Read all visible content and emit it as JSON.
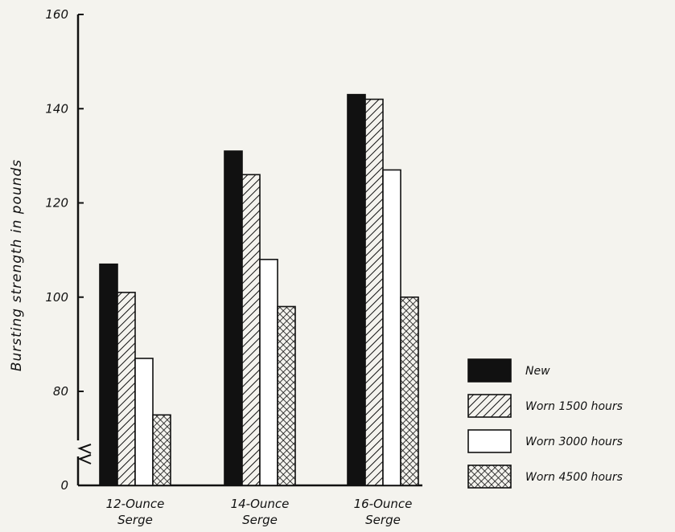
{
  "chart_data": {
    "type": "bar",
    "title": "",
    "xlabel": "",
    "ylabel": "Bursting strength in pounds",
    "categories": [
      [
        "12-Ounce",
        "Serge"
      ],
      [
        "14-Ounce",
        "Serge"
      ],
      [
        "16-Ounce",
        "Serge"
      ]
    ],
    "series": [
      {
        "name": "New",
        "values": [
          107,
          131,
          143
        ],
        "fill": "solid-black"
      },
      {
        "name": "Worn 1500 hours",
        "values": [
          101,
          126,
          142
        ],
        "fill": "diagonal-hatch"
      },
      {
        "name": "Worn 3000 hours",
        "values": [
          87,
          108,
          127
        ],
        "fill": "white"
      },
      {
        "name": "Worn 4500 hours",
        "values": [
          75,
          98,
          100
        ],
        "fill": "cross-hatch"
      }
    ],
    "yticks": [
      "0",
      "80",
      "100",
      "120",
      "140",
      "160"
    ],
    "ylim": [
      0,
      160
    ],
    "y_axis_break": "between 0 and 80",
    "grid": false,
    "legend_position": "right",
    "colors": {
      "ink": "#111111",
      "paper": "#f4f3ee"
    }
  }
}
